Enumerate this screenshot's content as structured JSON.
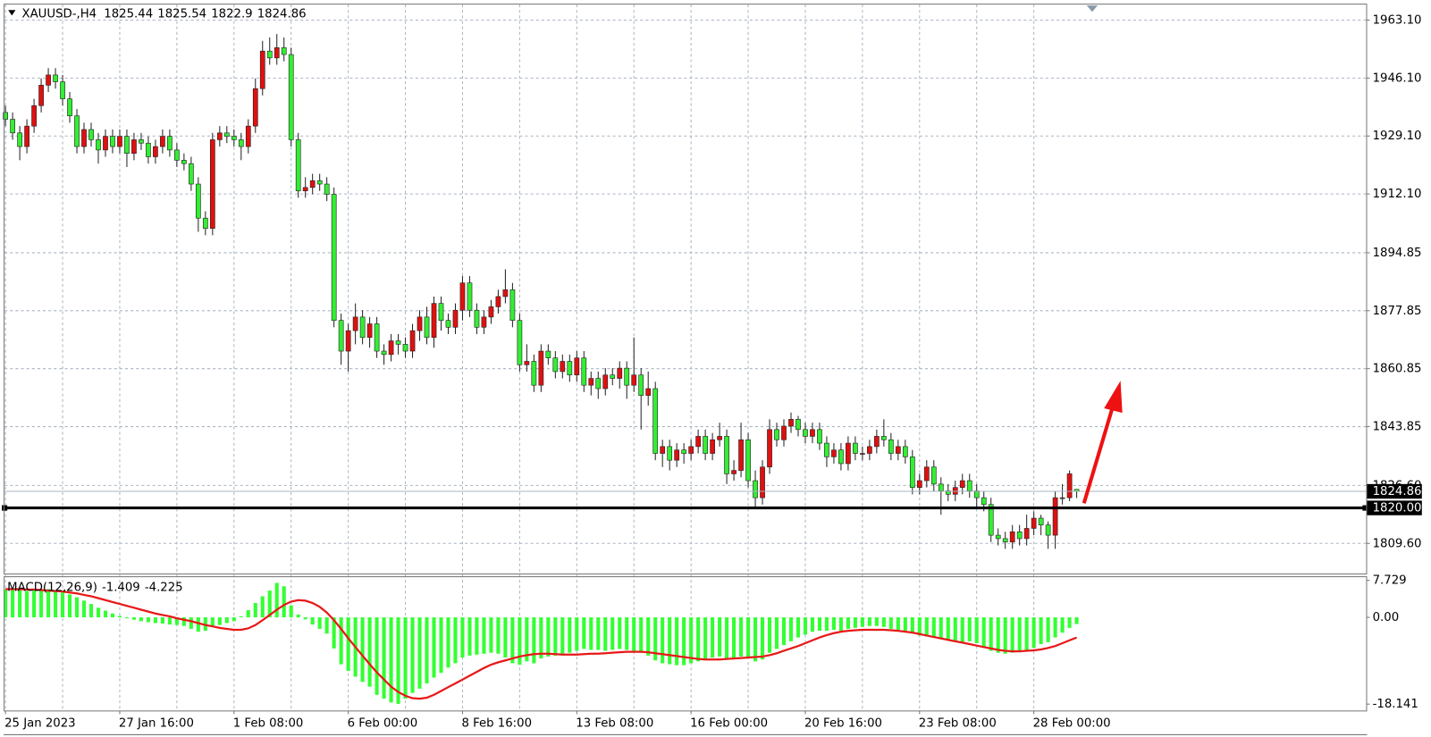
{
  "chart_data": [
    {
      "type": "candlestick",
      "title": "XAUUSD-,H4",
      "up_color": "#e01010",
      "down_color": "#33ee33",
      "grid": true,
      "categories": [
        "25 Jan 2023",
        null,
        null,
        null,
        null,
        null,
        null,
        null,
        null,
        null,
        null,
        null,
        null,
        null,
        null,
        null,
        "27 Jan 16:00",
        null,
        null,
        null,
        null,
        null,
        null,
        null,
        null,
        null,
        null,
        null,
        null,
        null,
        null,
        null,
        "1 Feb 08:00",
        null,
        null,
        null,
        null,
        null,
        null,
        null,
        null,
        null,
        null,
        null,
        null,
        null,
        null,
        null,
        "6 Feb 00:00",
        null,
        null,
        null,
        null,
        null,
        null,
        null,
        null,
        null,
        null,
        null,
        null,
        null,
        null,
        null,
        "8 Feb 16:00",
        null,
        null,
        null,
        null,
        null,
        null,
        null,
        null,
        null,
        null,
        null,
        null,
        null,
        null,
        null,
        "13 Feb 08:00",
        null,
        null,
        null,
        null,
        null,
        null,
        null,
        null,
        null,
        null,
        null,
        null,
        null,
        null,
        null,
        "16 Feb 00:00",
        null,
        null,
        null,
        null,
        null,
        null,
        null,
        null,
        null,
        null,
        null,
        null,
        null,
        null,
        null,
        "20 Feb 16:00",
        null,
        null,
        null,
        null,
        null,
        null,
        null,
        null,
        null,
        null,
        null,
        null,
        null,
        null,
        null,
        "23 Feb 08:00",
        null,
        null,
        null,
        null,
        null,
        null,
        null,
        null,
        null,
        null,
        null,
        null,
        null,
        null,
        null,
        "28 Feb 00:00",
        null,
        null,
        null,
        null,
        null,
        null
      ],
      "open": [
        1936,
        1934,
        1930,
        1926,
        1932,
        1938,
        1944,
        1947,
        1945,
        1940,
        1935,
        1926,
        1931,
        1928,
        1925,
        1929,
        1926,
        1929,
        1924,
        1928,
        1927,
        1923,
        1926,
        1929,
        1925,
        1922,
        1921,
        1915,
        1905,
        1902,
        1928,
        1930,
        1929,
        1928,
        1926,
        1932,
        1943,
        1954,
        1952,
        1955,
        1953,
        1928,
        1913,
        1914,
        1916,
        1915,
        1912,
        1875,
        1866,
        1872,
        1876,
        1870,
        1874,
        1866,
        1865,
        1869,
        1868,
        1866,
        1872,
        1876,
        1870,
        1880,
        1875,
        1873,
        1878,
        1886,
        1878,
        1873,
        1876,
        1879,
        1882,
        1884,
        1875,
        1862,
        1863,
        1856,
        1866,
        1864,
        1860,
        1863,
        1859,
        1864,
        1856,
        1858,
        1855,
        1859,
        1858,
        1861,
        1856,
        1859,
        1853,
        1855,
        1836,
        1838,
        1834,
        1837,
        1836,
        1838,
        1841,
        1836,
        1840,
        1841,
        1830,
        1831,
        1840,
        1828,
        1823,
        1832,
        1843,
        1840,
        1844,
        1846,
        1843,
        1841,
        1843,
        1839,
        1835,
        1837,
        1833,
        1839,
        1836,
        1836,
        1838,
        1841,
        1840,
        1836,
        1838,
        1835,
        1826,
        1828,
        1832,
        1827,
        1825,
        1824,
        1826,
        1828,
        1825,
        1823,
        1821,
        1812,
        1811,
        1810,
        1813,
        1811,
        1814,
        1817,
        1815,
        1812,
        1823,
        1823,
        1825.44
      ],
      "high": [
        1938,
        1936,
        1932,
        1934,
        1940,
        1946,
        1949,
        1949,
        1947,
        1942,
        1937,
        1933,
        1933,
        1930,
        1931,
        1931,
        1931,
        1931,
        1930,
        1930,
        1929,
        1928,
        1931,
        1931,
        1927,
        1924,
        1923,
        1917,
        1907,
        1930,
        1932,
        1932,
        1931,
        1930,
        1934,
        1946,
        1957,
        1958,
        1959,
        1958,
        1955,
        1930,
        1917,
        1918,
        1918,
        1917,
        1914,
        1877,
        1874,
        1880,
        1878,
        1876,
        1876,
        1868,
        1871,
        1871,
        1870,
        1874,
        1878,
        1879,
        1882,
        1882,
        1877,
        1880,
        1888,
        1888,
        1880,
        1878,
        1881,
        1884,
        1890,
        1886,
        1877,
        1868,
        1865,
        1868,
        1868,
        1866,
        1865,
        1865,
        1866,
        1866,
        1860,
        1860,
        1861,
        1861,
        1863,
        1863,
        1870,
        1861,
        1860,
        1857,
        1840,
        1840,
        1839,
        1839,
        1840,
        1843,
        1843,
        1842,
        1845,
        1843,
        1834,
        1845,
        1842,
        1831,
        1834,
        1846,
        1845,
        1846,
        1848,
        1847,
        1845,
        1845,
        1845,
        1841,
        1839,
        1839,
        1841,
        1841,
        1838,
        1840,
        1843,
        1846,
        1842,
        1840,
        1840,
        1837,
        1830,
        1834,
        1834,
        1829,
        1827,
        1828,
        1830,
        1830,
        1827,
        1825,
        1823,
        1814,
        1813,
        1815,
        1815,
        1818,
        1819,
        1818,
        1816,
        1825,
        1827,
        1831,
        1825.54
      ],
      "low": [
        1932,
        1928,
        1922,
        1924,
        1930,
        1936,
        1942,
        1943,
        1938,
        1933,
        1924,
        1924,
        1926,
        1921,
        1923,
        1924,
        1924,
        1920,
        1922,
        1925,
        1921,
        1921,
        1924,
        1923,
        1920,
        1919,
        1913,
        1901,
        1900,
        1900,
        1926,
        1927,
        1926,
        1922,
        1924,
        1930,
        1941,
        1950,
        1950,
        1951,
        1926,
        1911,
        1911,
        1912,
        1913,
        1910,
        1873,
        1862,
        1860,
        1868,
        1868,
        1867,
        1864,
        1862,
        1863,
        1865,
        1864,
        1864,
        1869,
        1868,
        1867,
        1872,
        1871,
        1871,
        1875,
        1876,
        1871,
        1871,
        1874,
        1877,
        1880,
        1873,
        1860,
        1860,
        1854,
        1854,
        1862,
        1858,
        1858,
        1857,
        1857,
        1854,
        1853,
        1852,
        1853,
        1856,
        1855,
        1852,
        1854,
        1843,
        1850,
        1834,
        1832,
        1831,
        1832,
        1833,
        1834,
        1836,
        1834,
        1834,
        1838,
        1827,
        1828,
        1829,
        1826,
        1820,
        1821,
        1830,
        1838,
        1838,
        1842,
        1841,
        1839,
        1839,
        1837,
        1832,
        1833,
        1831,
        1831,
        1834,
        1834,
        1834,
        1836,
        1838,
        1834,
        1834,
        1833,
        1824,
        1824,
        1826,
        1825,
        1818,
        1822,
        1822,
        1824,
        1823,
        1820,
        1819,
        1810,
        1809,
        1808,
        1808,
        1809,
        1809,
        1812,
        1812,
        1808,
        1808,
        1821,
        1822,
        1822.9
      ],
      "close": [
        1934,
        1930,
        1926,
        1932,
        1938,
        1944,
        1947,
        1945,
        1940,
        1935,
        1926,
        1931,
        1928,
        1925,
        1929,
        1926,
        1929,
        1924,
        1928,
        1927,
        1923,
        1926,
        1929,
        1925,
        1922,
        1921,
        1915,
        1905,
        1902,
        1928,
        1930,
        1929,
        1928,
        1926,
        1932,
        1943,
        1954,
        1952,
        1955,
        1953,
        1928,
        1913,
        1914,
        1916,
        1915,
        1912,
        1875,
        1866,
        1872,
        1876,
        1870,
        1874,
        1866,
        1865,
        1869,
        1868,
        1866,
        1872,
        1876,
        1870,
        1880,
        1875,
        1873,
        1878,
        1886,
        1878,
        1873,
        1876,
        1879,
        1882,
        1884,
        1875,
        1862,
        1863,
        1856,
        1866,
        1864,
        1860,
        1863,
        1859,
        1864,
        1856,
        1858,
        1855,
        1859,
        1858,
        1861,
        1856,
        1859,
        1853,
        1855,
        1836,
        1838,
        1834,
        1837,
        1836,
        1838,
        1841,
        1836,
        1840,
        1841,
        1830,
        1831,
        1840,
        1828,
        1823,
        1832,
        1843,
        1840,
        1844,
        1846,
        1843,
        1841,
        1843,
        1839,
        1835,
        1837,
        1833,
        1839,
        1836,
        1836,
        1838,
        1841,
        1840,
        1836,
        1838,
        1835,
        1826,
        1828,
        1832,
        1827,
        1825,
        1824,
        1826,
        1828,
        1825,
        1823,
        1821,
        1812,
        1811,
        1810,
        1813,
        1811,
        1814,
        1817,
        1815,
        1812,
        1823,
        1823,
        1830,
        1824.86
      ],
      "ylim": [
        1800.76,
        1967.65
      ],
      "yticks": [
        {
          "value": 1963.1,
          "label": "1963.10"
        },
        {
          "value": 1946.1,
          "label": "1946.10"
        },
        {
          "value": 1929.1,
          "label": "1929.10"
        },
        {
          "value": 1912.1,
          "label": "1912.10"
        },
        {
          "value": 1894.85,
          "label": "1894.85"
        },
        {
          "value": 1877.85,
          "label": "1877.85"
        },
        {
          "value": 1860.85,
          "label": "1860.85"
        },
        {
          "value": 1843.85,
          "label": "1843.85"
        },
        {
          "value": 1826.6,
          "label": "1826.60"
        },
        {
          "value": 1809.6,
          "label": "1809.60"
        }
      ],
      "hlines": [
        {
          "value": 1820,
          "label": "1820.00"
        }
      ]
    },
    {
      "type": "macd",
      "title": "MACD(12,26,9)",
      "series": [
        {
          "name": "histogram",
          "color": "#33ff33",
          "values": [
            5.8,
            5.9,
            5.7,
            5.5,
            5.6,
            5.8,
            5.9,
            5.6,
            5.2,
            4.8,
            4.2,
            3.5,
            2.8,
            2.0,
            1.4,
            0.8,
            0.3,
            -0.2,
            -0.5,
            -0.8,
            -1.0,
            -1.2,
            -1.3,
            -1.5,
            -1.6,
            -1.8,
            -2.4,
            -3.0,
            -2.8,
            -2.0,
            -1.6,
            -1.2,
            -0.8,
            0.2,
            1.5,
            3.0,
            4.4,
            5.6,
            7.2,
            6.5,
            2.5,
            0.6,
            -0.4,
            -1.5,
            -2.4,
            -3.4,
            -6.5,
            -9.8,
            -11.2,
            -12.4,
            -13.5,
            -14.5,
            -16.2,
            -17.0,
            -17.8,
            -18.1,
            -17.0,
            -15.8,
            -14.9,
            -13.8,
            -12.6,
            -11.6,
            -10.5,
            -9.6,
            -8.4,
            -8.0,
            -7.8,
            -7.6,
            -7.4,
            -7.6,
            -8.4,
            -9.6,
            -9.9,
            -9.2,
            -9.6,
            -8.6,
            -8.2,
            -8.0,
            -7.6,
            -7.4,
            -7.0,
            -6.6,
            -6.8,
            -6.8,
            -7.0,
            -6.8,
            -6.6,
            -6.8,
            -7.0,
            -7.4,
            -8.0,
            -9.0,
            -9.6,
            -9.8,
            -10.0,
            -10.0,
            -9.6,
            -9.2,
            -8.9,
            -8.4,
            -8.2,
            -8.6,
            -8.6,
            -8.2,
            -8.4,
            -9.2,
            -8.8,
            -7.4,
            -6.6,
            -5.8,
            -5.0,
            -4.2,
            -3.6,
            -3.0,
            -2.8,
            -2.8,
            -2.6,
            -2.8,
            -2.4,
            -2.2,
            -2.0,
            -1.8,
            -1.8,
            -2.0,
            -2.4,
            -2.6,
            -2.8,
            -3.4,
            -3.8,
            -4.0,
            -4.2,
            -4.5,
            -4.8,
            -5.0,
            -5.2,
            -5.0,
            -5.4,
            -6.2,
            -7.0,
            -7.4,
            -7.6,
            -7.4,
            -7.2,
            -6.8,
            -6.4,
            -5.6,
            -5.2,
            -4.2,
            -3.2,
            -2.2,
            -1.409
          ]
        },
        {
          "name": "signal",
          "color": "#e81818",
          "values": [
            5.9,
            5.9,
            5.9,
            5.8,
            5.8,
            5.7,
            5.6,
            5.5,
            5.4,
            5.2,
            5.0,
            4.7,
            4.4,
            4.0,
            3.6,
            3.2,
            2.8,
            2.4,
            2.0,
            1.6,
            1.2,
            0.8,
            0.5,
            0.2,
            -0.2,
            -0.5,
            -0.8,
            -1.2,
            -1.6,
            -1.9,
            -2.2,
            -2.4,
            -2.6,
            -2.6,
            -2.3,
            -1.6,
            -0.6,
            0.5,
            1.6,
            2.6,
            3.3,
            3.6,
            3.5,
            3.0,
            2.2,
            1.0,
            -0.6,
            -2.4,
            -4.4,
            -6.2,
            -8.0,
            -9.8,
            -11.5,
            -13.0,
            -14.5,
            -15.6,
            -16.4,
            -16.9,
            -17.0,
            -16.8,
            -16.2,
            -15.4,
            -14.6,
            -13.8,
            -13.0,
            -12.2,
            -11.4,
            -10.6,
            -9.9,
            -9.4,
            -9.0,
            -8.6,
            -8.2,
            -7.9,
            -7.7,
            -7.6,
            -7.6,
            -7.7,
            -7.8,
            -7.8,
            -7.8,
            -7.7,
            -7.6,
            -7.6,
            -7.5,
            -7.4,
            -7.3,
            -7.2,
            -7.2,
            -7.2,
            -7.3,
            -7.5,
            -7.7,
            -7.9,
            -8.1,
            -8.3,
            -8.5,
            -8.7,
            -8.8,
            -8.8,
            -8.8,
            -8.7,
            -8.6,
            -8.5,
            -8.4,
            -8.3,
            -8.2,
            -7.9,
            -7.5,
            -7.0,
            -6.5,
            -6.0,
            -5.4,
            -4.8,
            -4.2,
            -3.7,
            -3.3,
            -3.0,
            -2.8,
            -2.7,
            -2.6,
            -2.6,
            -2.6,
            -2.6,
            -2.7,
            -2.8,
            -3.0,
            -3.2,
            -3.5,
            -3.8,
            -4.1,
            -4.4,
            -4.7,
            -5.0,
            -5.3,
            -5.6,
            -5.9,
            -6.2,
            -6.5,
            -6.8,
            -7.0,
            -7.1,
            -7.1,
            -7.0,
            -6.9,
            -6.7,
            -6.4,
            -6.0,
            -5.4,
            -4.8,
            -4.225
          ]
        }
      ],
      "ylim": [
        -19.48,
        8.4
      ],
      "yticks": [
        7.729,
        {
          "value": 0,
          "label": "0.00"
        },
        -18.141
      ]
    }
  ]
}
